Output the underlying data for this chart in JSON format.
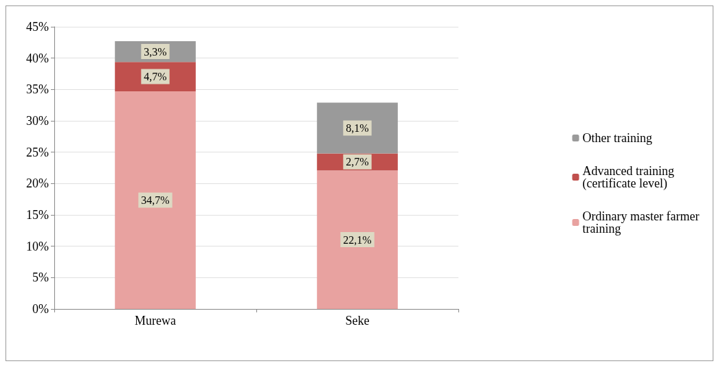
{
  "chart_data": {
    "type": "bar",
    "stacked": true,
    "categories": [
      "Murewa",
      "Seke"
    ],
    "series": [
      {
        "name": "Ordinary master farmer training",
        "color": "#e8a2a0",
        "values": [
          34.7,
          22.1
        ],
        "value_labels": [
          "34,7%",
          "22,1%"
        ]
      },
      {
        "name": "Advanced training (certificate level)",
        "color": "#c0504d",
        "values": [
          4.7,
          2.7
        ],
        "value_labels": [
          "4,7%",
          "2,7%"
        ]
      },
      {
        "name": "Other training",
        "color": "#9a9a9a",
        "values": [
          3.3,
          8.1
        ],
        "value_labels": [
          "3,3%",
          "8,1%"
        ]
      }
    ],
    "ylim": [
      0,
      45
    ],
    "yticks": [
      {
        "value": 0,
        "label": "0%"
      },
      {
        "value": 5,
        "label": "5%"
      },
      {
        "value": 10,
        "label": "10%"
      },
      {
        "value": 15,
        "label": "15%"
      },
      {
        "value": 20,
        "label": "20%"
      },
      {
        "value": 25,
        "label": "25%"
      },
      {
        "value": 30,
        "label": "30%"
      },
      {
        "value": 35,
        "label": "35%"
      },
      {
        "value": 40,
        "label": "40%"
      },
      {
        "value": 45,
        "label": "45%"
      }
    ],
    "grid": "y",
    "legend": "right"
  }
}
